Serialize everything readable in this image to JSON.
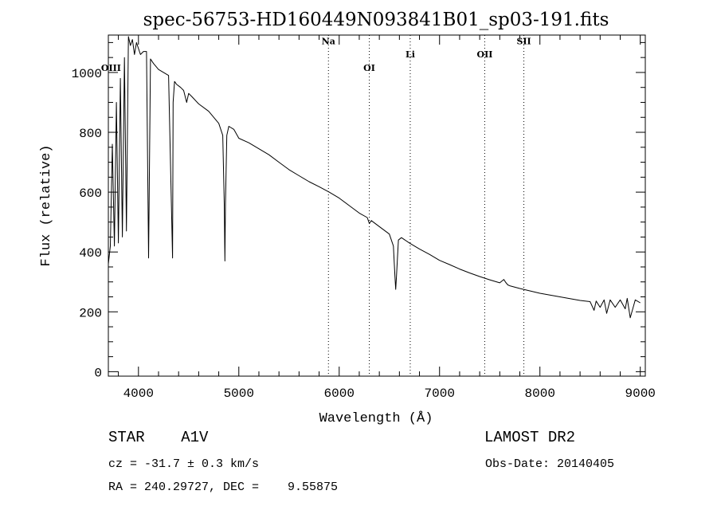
{
  "chart_data": {
    "type": "line",
    "title": "spec-56753-HD160449N093841B01_sp03-191.fits",
    "xlabel": "Wavelength (Å)",
    "ylabel": "Flux (relative)",
    "xlim": [
      3700,
      9050
    ],
    "ylim": [
      -15,
      1125
    ],
    "xticks": [
      4000,
      5000,
      6000,
      7000,
      8000,
      9000
    ],
    "yticks": [
      0,
      200,
      400,
      600,
      800,
      1000
    ],
    "grid": false,
    "series": [
      {
        "x": [
          3700,
          3720,
          3740,
          3760,
          3780,
          3800,
          3820,
          3840,
          3860,
          3880,
          3900,
          3920,
          3940,
          3960,
          3980,
          4000,
          4020,
          4050,
          4080,
          4101,
          4120,
          4150,
          4200,
          4250,
          4300,
          4340,
          4345,
          4360,
          4380,
          4420,
          4450,
          4480,
          4500,
          4530,
          4600,
          4700,
          4800,
          4840,
          4855,
          4861,
          4867,
          4880,
          4900,
          4950,
          5000,
          5100,
          5200,
          5300,
          5400,
          5500,
          5600,
          5700,
          5800,
          5900,
          6000,
          6100,
          6200,
          6280,
          6300,
          6320,
          6400,
          6500,
          6540,
          6555,
          6563,
          6571,
          6590,
          6620,
          6700,
          6800,
          6900,
          7000,
          7100,
          7200,
          7300,
          7400,
          7500,
          7600,
          7640,
          7660,
          7680,
          7700,
          7800,
          7900,
          8000,
          8100,
          8200,
          8300,
          8400,
          8500,
          8540,
          8560,
          8600,
          8640,
          8665,
          8700,
          8750,
          8800,
          8850,
          8870,
          8900,
          8950,
          9000
        ],
        "y": [
          360,
          420,
          760,
          420,
          900,
          430,
          980,
          450,
          1050,
          470,
          1120,
          1090,
          1110,
          1060,
          1100,
          1080,
          1060,
          1070,
          1070,
          380,
          1045,
          1030,
          1010,
          1000,
          990,
          380,
          900,
          970,
          960,
          950,
          940,
          900,
          930,
          920,
          895,
          870,
          830,
          790,
          560,
          370,
          560,
          790,
          820,
          810,
          780,
          765,
          745,
          725,
          700,
          675,
          655,
          635,
          618,
          600,
          580,
          555,
          530,
          515,
          495,
          505,
          485,
          460,
          420,
          320,
          275,
          320,
          440,
          448,
          430,
          410,
          392,
          372,
          358,
          343,
          330,
          318,
          307,
          297,
          308,
          298,
          290,
          287,
          278,
          270,
          262,
          256,
          250,
          244,
          238,
          234,
          205,
          236,
          215,
          240,
          195,
          240,
          215,
          240,
          210,
          245,
          180,
          240,
          230
        ]
      }
    ],
    "annotations": [
      {
        "label": "OIII",
        "x": 3727,
        "y": 1005
      },
      {
        "label": "Na",
        "x": 5893,
        "y": 1095
      },
      {
        "label": "OI",
        "x": 6300,
        "y": 1005
      },
      {
        "label": "Li",
        "x": 6708,
        "y": 1050
      },
      {
        "label": "OII",
        "x": 7450,
        "y": 1050
      },
      {
        "label": "SII",
        "x": 7840,
        "y": 1095
      }
    ],
    "vlines": [
      5893,
      6300,
      6708,
      7450,
      7840
    ]
  },
  "info": {
    "star": "STAR    A1V",
    "survey": "LAMOST DR2",
    "cz": "cz = -31.7 ± 0.3 km/s",
    "obs_date": "Obs-Date: 20140405",
    "radec": "RA = 240.29727, DEC =    9.55875"
  }
}
